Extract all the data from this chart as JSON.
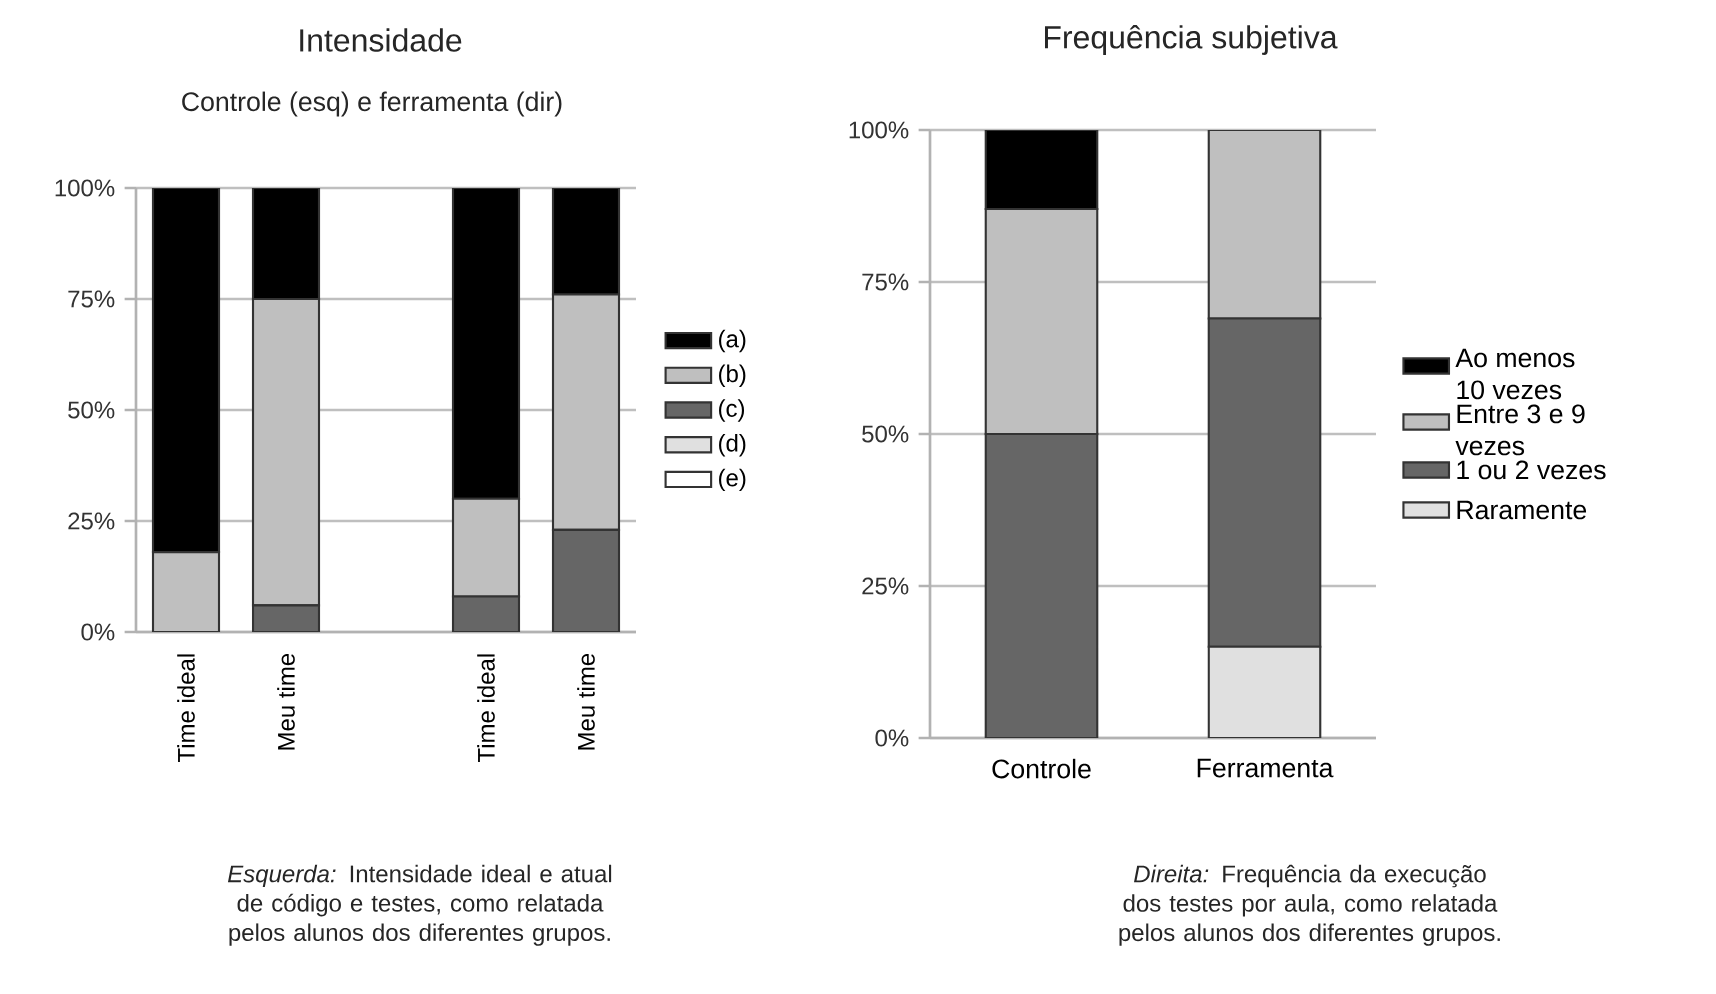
{
  "chart_data": [
    {
      "type": "bar",
      "stacked": true,
      "title": "Intensidade",
      "subtitle": "Controle (esq) e ferramenta (dir)",
      "categories": [
        "Time ideal",
        "Meu time",
        null,
        "Time ideal",
        "Meu time"
      ],
      "series": [
        {
          "name": "(e)",
          "color": "#ffffff",
          "values": [
            0,
            0,
            null,
            0,
            0
          ]
        },
        {
          "name": "(d)",
          "color": "#e0e0e0",
          "values": [
            0,
            0,
            null,
            0,
            0
          ]
        },
        {
          "name": "(c)",
          "color": "#666666",
          "values": [
            0,
            6,
            null,
            8,
            23
          ]
        },
        {
          "name": "(b)",
          "color": "#bfbfbf",
          "values": [
            18,
            69,
            null,
            22,
            53
          ]
        },
        {
          "name": "(a)",
          "color": "#000000",
          "values": [
            82,
            25,
            null,
            70,
            24
          ]
        }
      ],
      "ylim": [
        0,
        100
      ],
      "yticks": [
        {
          "value": 0,
          "label": "0%"
        },
        {
          "value": 25,
          "label": "25%"
        },
        {
          "value": 50,
          "label": "50%"
        },
        {
          "value": 75,
          "label": "75%"
        },
        {
          "value": 100,
          "label": "100%"
        }
      ],
      "grid": "y",
      "legend": "right",
      "annotations": [
        "*Esquerda:* Intensidade ideal e atual de código e testes, como relatada pelos alunos dos diferentes grupos."
      ]
    },
    {
      "type": "bar",
      "stacked": true,
      "title": "Frequência subjetiva",
      "categories": [
        "Controle",
        "Ferramenta"
      ],
      "series": [
        {
          "name": "Raramente",
          "color": "#e0e0e0",
          "values": [
            0,
            15
          ]
        },
        {
          "name": "1 ou 2 vezes",
          "color": "#666666",
          "values": [
            50,
            54
          ]
        },
        {
          "name": "Entre 3 e 9 vezes",
          "color": "#bfbfbf",
          "values": [
            37,
            31
          ]
        },
        {
          "name": "Ao menos 10 vezes",
          "color": "#000000",
          "values": [
            13,
            0
          ]
        }
      ],
      "ylim": [
        0,
        100
      ],
      "yticks": [
        {
          "value": 0,
          "label": "0%"
        },
        {
          "value": 25,
          "label": "25%"
        },
        {
          "value": 50,
          "label": "50%"
        },
        {
          "value": 75,
          "label": "75%"
        },
        {
          "value": 100,
          "label": "100%"
        }
      ],
      "grid": "y",
      "legend": "right",
      "annotations": [
        "*Direita:* Frequência da execução dos testes por aula, como relatada pelos alunos dos diferentes grupos."
      ]
    }
  ]
}
